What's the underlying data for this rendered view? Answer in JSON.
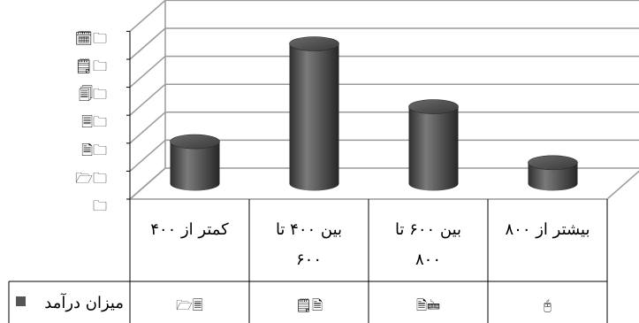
{
  "chart_data": {
    "type": "bar",
    "style": "3d-cylinder",
    "categories": [
      [
        "کمتر از ۴۰۰"
      ],
      [
        "بین ۴۰۰ تا",
        "۶۰۰"
      ],
      [
        "بین ۶۰۰ تا",
        "۸۰۰"
      ],
      [
        "بیشتر از ۸۰۰"
      ]
    ],
    "series": [
      {
        "name": "میزان درآمد",
        "values": [
          1.5,
          5.0,
          2.75,
          0.75
        ],
        "color": "#555555"
      }
    ],
    "ylim": [
      0,
      6
    ],
    "y_tick_labels": [
      "🗀",
      "🗁🗀",
      "🗎🗀",
      "🗏🗀",
      "🗐🗀",
      "🗒🗀",
      "🗓🗀"
    ],
    "data_table_values": [
      "🗁🗏",
      "🗒🗎",
      "🗎🖮",
      "🖰"
    ],
    "grid": true,
    "legend": "data-table-left",
    "colors": {
      "bar": "#555555",
      "grid": "#9a9a9a",
      "table_border": "#000000"
    }
  }
}
